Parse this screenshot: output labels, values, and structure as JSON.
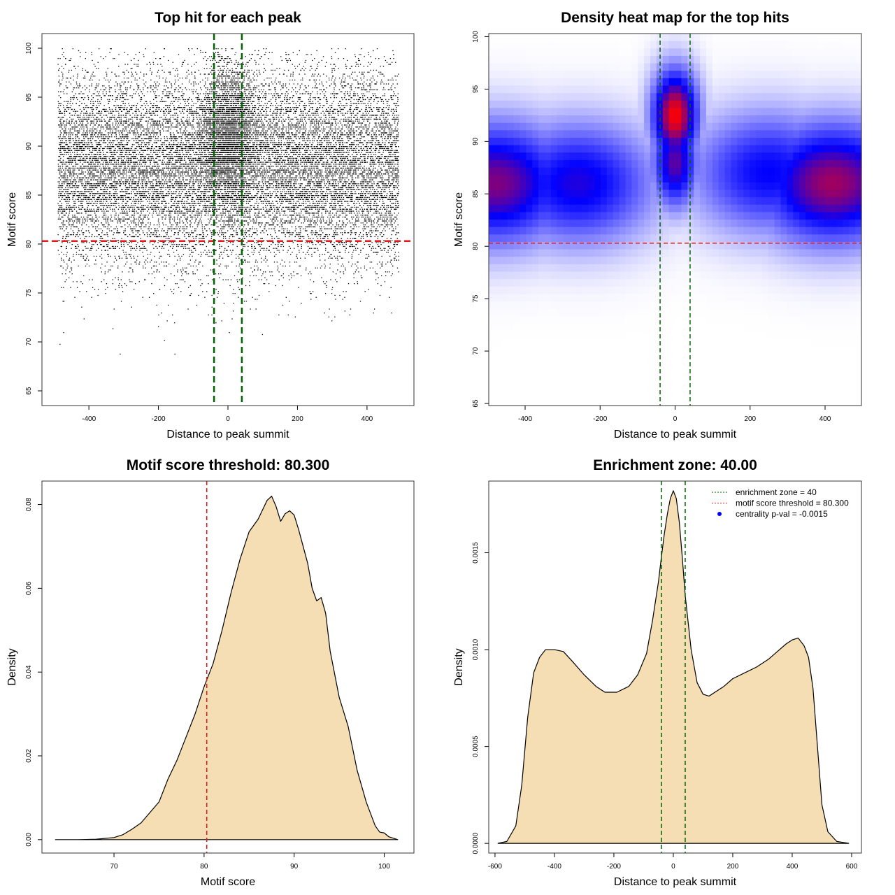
{
  "chart_data": [
    {
      "type": "scatter",
      "title": "Top hit for each peak",
      "xlabel": "Distance to peak summit",
      "ylabel": "Motif score",
      "xlim": [
        -535,
        535
      ],
      "ylim": [
        63.5,
        101.5
      ],
      "xticks": [
        "-400",
        "-200",
        "0",
        "200",
        "400"
      ],
      "yticks": [
        "65",
        "70",
        "75",
        "80",
        "85",
        "90",
        "95",
        "100"
      ],
      "point_color": "#000000",
      "n_points_approx": 21000,
      "x_range_of_points": [
        -490,
        490
      ],
      "reference_lines": {
        "vertical": [
          -40,
          40
        ],
        "vertical_color": "#006400",
        "horizontal": [
          80.3
        ],
        "horizontal_color": "#e31a1c"
      },
      "density_profile": {
        "score_peak": 88,
        "score_sd": 5,
        "central_cluster": {
          "x_center": 0,
          "x_sd": 40,
          "score_center": 91
        }
      },
      "grid": false
    },
    {
      "type": "heatmap",
      "title": "Density heat map for the top hits",
      "xlabel": "Distance to peak summit",
      "ylabel": "Motif score",
      "xlim": [
        -497,
        497
      ],
      "ylim": [
        64.8,
        100.3
      ],
      "xticks": [
        "-400",
        "-200",
        "0",
        "200",
        "400"
      ],
      "yticks": [
        "65",
        "70",
        "75",
        "80",
        "85",
        "90",
        "95",
        "100"
      ],
      "color_scale": [
        "#ffffff",
        "#0000ff",
        "#ff0000"
      ],
      "hotspots": [
        {
          "x": -480,
          "score": 86,
          "level": 0.8
        },
        {
          "x": -260,
          "score": 86,
          "level": 0.65
        },
        {
          "x": 0,
          "score": 92.5,
          "level": 1.0
        },
        {
          "x": 0,
          "score": 88,
          "level": 0.75
        },
        {
          "x": 250,
          "score": 87,
          "level": 0.6
        },
        {
          "x": 420,
          "score": 86,
          "level": 0.85
        }
      ],
      "reference_lines": {
        "vertical": [
          -40,
          40
        ],
        "vertical_color": "#006400",
        "horizontal": [
          80.3
        ],
        "horizontal_color": "#e31a1c"
      },
      "grid": false
    },
    {
      "type": "area",
      "title": "Motif score threshold: 80.300",
      "xlabel": "Motif score",
      "ylabel": "Density",
      "xlim": [
        62,
        103.3
      ],
      "ylim": [
        -0.0032,
        0.0856
      ],
      "xticks": [
        "70",
        "80",
        "90",
        "100"
      ],
      "yticks": [
        "0.00",
        "0.02",
        "0.04",
        "0.06",
        "0.08"
      ],
      "x": [
        63.5,
        66,
        68,
        70,
        71,
        72,
        73,
        74,
        75,
        76,
        77,
        78,
        79,
        80,
        81,
        82,
        83,
        84,
        85,
        86,
        87,
        87.5,
        88,
        88.5,
        89,
        89.5,
        90,
        90.5,
        91,
        91.5,
        92,
        92.5,
        93,
        93.5,
        94,
        95,
        96,
        97,
        98,
        99,
        99.5,
        100,
        100.5,
        101.5
      ],
      "values": [
        0.0,
        0.0,
        0.0001,
        0.0005,
        0.0012,
        0.0025,
        0.004,
        0.0065,
        0.009,
        0.0145,
        0.019,
        0.0245,
        0.03,
        0.0365,
        0.042,
        0.05,
        0.059,
        0.067,
        0.0735,
        0.0765,
        0.081,
        0.082,
        0.0795,
        0.076,
        0.0778,
        0.0785,
        0.0775,
        0.074,
        0.07,
        0.066,
        0.06,
        0.057,
        0.0578,
        0.054,
        0.045,
        0.034,
        0.027,
        0.0165,
        0.009,
        0.0033,
        0.0018,
        0.0016,
        0.0007,
        0.0
      ],
      "threshold_line": 80.3,
      "threshold_color": "#e31a1c",
      "fill_color": "#f5deb3",
      "grid": false
    },
    {
      "type": "area",
      "title": "Enrichment zone: 40.00",
      "xlabel": "Distance to peak summit",
      "ylabel": "Density",
      "xlim": [
        -621,
        633
      ],
      "ylim": [
        -5e-05,
        0.00187
      ],
      "xticks": [
        "-600",
        "-400",
        "-200",
        "0",
        "200",
        "400",
        "600"
      ],
      "yticks": [
        "0.0000",
        "0.0005",
        "0.0010",
        "0.0015"
      ],
      "x": [
        -590,
        -560,
        -530,
        -510,
        -490,
        -470,
        -450,
        -430,
        -400,
        -370,
        -340,
        -300,
        -260,
        -230,
        -190,
        -150,
        -120,
        -90,
        -70,
        -50,
        -40,
        -30,
        -20,
        -10,
        0,
        10,
        20,
        30,
        40,
        60,
        80,
        100,
        120,
        140,
        170,
        200,
        240,
        280,
        320,
        350,
        380,
        400,
        420,
        440,
        455,
        470,
        485,
        500,
        520,
        550,
        590
      ],
      "values": [
        0.0,
        1e-05,
        9e-05,
        0.0003,
        0.00065,
        0.00088,
        0.00096,
        0.001,
        0.001,
        0.00099,
        0.00094,
        0.00087,
        0.00081,
        0.00078,
        0.00078,
        0.00081,
        0.00087,
        0.00098,
        0.00115,
        0.00135,
        0.00148,
        0.0016,
        0.0017,
        0.00178,
        0.00182,
        0.00178,
        0.00166,
        0.00148,
        0.00128,
        0.001,
        0.00083,
        0.00077,
        0.00076,
        0.00078,
        0.00081,
        0.00085,
        0.00088,
        0.00091,
        0.00095,
        0.00099,
        0.00103,
        0.00105,
        0.00106,
        0.00102,
        0.00096,
        0.0008,
        0.0005,
        0.0002,
        6e-05,
        1e-05,
        0.0
      ],
      "enrichment_lines": [
        -40,
        40
      ],
      "enrichment_color": "#006400",
      "fill_color": "#f5deb3",
      "legend": [
        {
          "label": "enrichment zone = 40",
          "symbol": "dotted-line",
          "color": "#006400"
        },
        {
          "label": "motif score threshold = 80.300",
          "symbol": "dotted-line",
          "color": "#e31a1c"
        },
        {
          "label": "centrality p-val = -0.0015",
          "symbol": "dot",
          "color": "#0000ff"
        }
      ],
      "legend_position": "top-right",
      "grid": false
    }
  ]
}
